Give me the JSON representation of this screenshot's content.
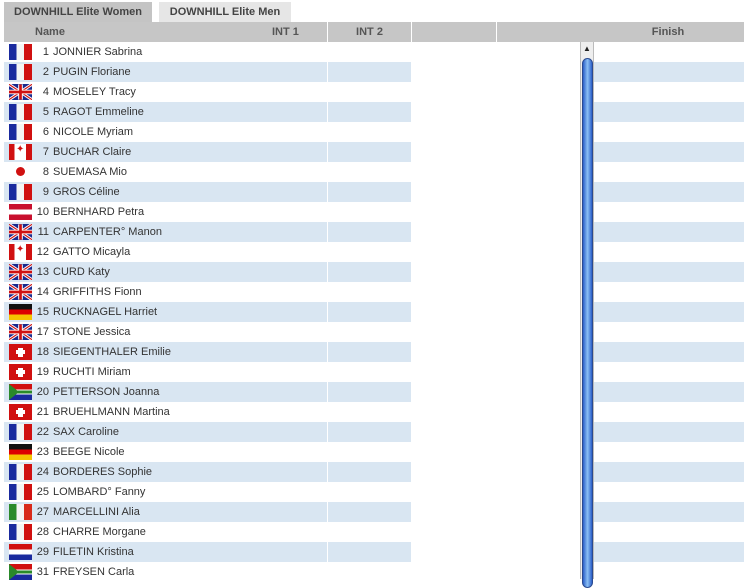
{
  "tabs": [
    {
      "label": "DOWNHILL Elite Women",
      "active": true
    },
    {
      "label": "DOWNHILL Elite Men",
      "active": false
    }
  ],
  "columns": {
    "name": "Name",
    "int1": "INT 1",
    "int2": "INT 2",
    "blank": "",
    "finish": "Finish"
  },
  "colors": {
    "stripe": "#d9e6f2",
    "header": "#c6c6c6",
    "active_tab": "#c4c4c4",
    "inactive_tab": "#e6e6e6",
    "scroll_thumb": "#4a8ae0"
  },
  "rows": [
    {
      "flag": "fr",
      "num": "1",
      "name": "JONNIER Sabrina"
    },
    {
      "flag": "fr",
      "num": "2",
      "name": "PUGIN Floriane"
    },
    {
      "flag": "gb",
      "num": "4",
      "name": "MOSELEY Tracy"
    },
    {
      "flag": "fr",
      "num": "5",
      "name": "RAGOT Emmeline"
    },
    {
      "flag": "fr",
      "num": "6",
      "name": "NICOLE Myriam"
    },
    {
      "flag": "ca",
      "num": "7",
      "name": "BUCHAR Claire"
    },
    {
      "flag": "jp",
      "num": "8",
      "name": "SUEMASA Mio"
    },
    {
      "flag": "fr",
      "num": "9",
      "name": "GROS Céline"
    },
    {
      "flag": "at",
      "num": "10",
      "name": "BERNHARD Petra"
    },
    {
      "flag": "gb",
      "num": "11",
      "name": "CARPENTER° Manon"
    },
    {
      "flag": "ca",
      "num": "12",
      "name": "GATTO Micayla"
    },
    {
      "flag": "gb",
      "num": "13",
      "name": "CURD Katy"
    },
    {
      "flag": "gb",
      "num": "14",
      "name": "GRIFFITHS Fionn"
    },
    {
      "flag": "de",
      "num": "15",
      "name": "RUCKNAGEL Harriet"
    },
    {
      "flag": "gb",
      "num": "17",
      "name": "STONE Jessica"
    },
    {
      "flag": "ch",
      "num": "18",
      "name": "SIEGENTHALER Emilie"
    },
    {
      "flag": "ch",
      "num": "19",
      "name": "RUCHTI Miriam"
    },
    {
      "flag": "za",
      "num": "20",
      "name": "PETTERSON Joanna"
    },
    {
      "flag": "ch",
      "num": "21",
      "name": "BRUEHLMANN Martina"
    },
    {
      "flag": "fr",
      "num": "22",
      "name": "SAX Caroline"
    },
    {
      "flag": "de",
      "num": "23",
      "name": "BEEGE Nicole"
    },
    {
      "flag": "fr",
      "num": "24",
      "name": "BORDERES Sophie"
    },
    {
      "flag": "fr",
      "num": "25",
      "name": "LOMBARD° Fanny"
    },
    {
      "flag": "it",
      "num": "27",
      "name": "MARCELLINI Alia"
    },
    {
      "flag": "fr",
      "num": "28",
      "name": "CHARRE Morgane"
    },
    {
      "flag": "hr",
      "num": "29",
      "name": "FILETIN Kristina"
    },
    {
      "flag": "za",
      "num": "31",
      "name": "FREYSEN Carla"
    }
  ]
}
